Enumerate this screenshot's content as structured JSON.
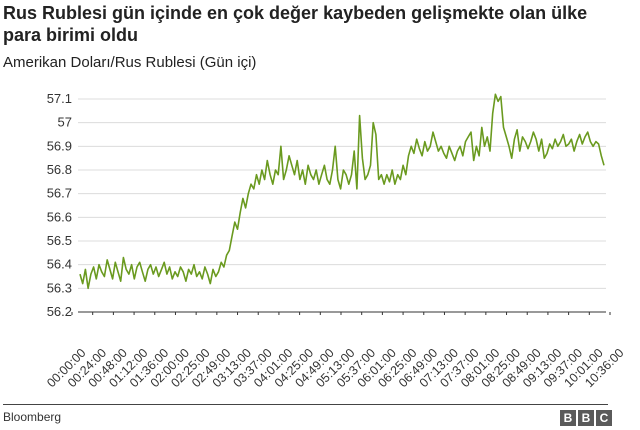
{
  "header": {
    "title": "Rus Rublesi gün içinde en çok değer kaybeden gelişmekte olan ülke para birimi oldu",
    "subtitle": "Amerikan Doları/Rus Rublesi (Gün içi)"
  },
  "footer": {
    "source": "Bloomberg",
    "logo_letters": [
      "B",
      "B",
      "C"
    ]
  },
  "colors": {
    "line": "#6a9a1f",
    "grid": "#dcdcdc",
    "axis": "#333333"
  },
  "chart_data": {
    "type": "line",
    "title": "Rus Rublesi gün içinde en çok değer kaybeden gelişmekte olan ülke para birimi oldu",
    "subtitle": "Amerikan Doları/Rus Rublesi (Gün içi)",
    "xlabel": "",
    "ylabel": "",
    "ylim": [
      56.2,
      57.1
    ],
    "yticks": [
      "57.1",
      "57",
      "56.9",
      "56.8",
      "56.7",
      "56.6",
      "56.5",
      "56.4",
      "56.3",
      "56.2"
    ],
    "grid": true,
    "xticks": [
      "00:00:00",
      "00:24:00",
      "00:48:00",
      "01:12:00",
      "01:36:00",
      "02:00:00",
      "02:25:00",
      "02:49:00",
      "03:13:00",
      "03:37:00",
      "04:01:00",
      "04:25:00",
      "04:49:00",
      "05:13:00",
      "05:37:00",
      "06:01:00",
      "06:25:00",
      "06:49:00",
      "07:13:00",
      "07:37:00",
      "08:01:00",
      "08:25:00",
      "08:49:00",
      "09:13:00",
      "09:37:00",
      "10:01:00",
      "10:36:00"
    ],
    "series": [
      {
        "values": [
          56.36,
          56.32,
          56.38,
          56.3,
          56.36,
          56.39,
          56.34,
          56.4,
          56.37,
          56.35,
          56.42,
          56.38,
          56.34,
          56.41,
          56.37,
          56.33,
          56.43,
          56.38,
          56.36,
          56.4,
          56.34,
          56.39,
          56.41,
          56.37,
          56.33,
          56.38,
          56.4,
          56.36,
          56.39,
          56.35,
          56.38,
          56.41,
          56.36,
          56.39,
          56.34,
          56.37,
          56.35,
          56.39,
          56.37,
          56.33,
          56.38,
          56.36,
          56.4,
          56.35,
          56.37,
          56.34,
          56.39,
          56.36,
          56.32,
          56.38,
          56.35,
          56.37,
          56.41,
          56.39,
          56.44,
          56.46,
          56.52,
          56.58,
          56.55,
          56.62,
          56.68,
          56.64,
          56.7,
          56.74,
          56.72,
          56.78,
          56.74,
          56.8,
          56.76,
          56.84,
          56.78,
          56.74,
          56.8,
          56.78,
          56.9,
          56.76,
          56.8,
          56.86,
          56.82,
          56.78,
          56.84,
          56.76,
          56.8,
          56.74,
          56.82,
          56.78,
          56.76,
          56.8,
          56.74,
          56.78,
          56.82,
          56.76,
          56.74,
          56.8,
          56.9,
          56.76,
          56.72,
          56.8,
          56.78,
          56.74,
          56.78,
          56.88,
          56.72,
          57.03,
          56.85,
          56.76,
          56.78,
          56.82,
          57.0,
          56.95,
          56.76,
          56.78,
          56.74,
          56.78,
          56.75,
          56.8,
          56.74,
          56.78,
          56.76,
          56.82,
          56.78,
          56.86,
          56.9,
          56.87,
          56.93,
          56.89,
          56.86,
          56.92,
          56.88,
          56.9,
          56.96,
          56.92,
          56.88,
          56.9,
          56.87,
          56.85,
          56.9,
          56.87,
          56.84,
          56.88,
          56.9,
          56.86,
          56.92,
          56.94,
          56.96,
          56.84,
          56.9,
          56.86,
          56.98,
          56.9,
          56.94,
          56.88,
          57.04,
          57.12,
          57.09,
          57.11,
          56.98,
          56.94,
          56.9,
          56.85,
          56.93,
          56.97,
          56.88,
          56.94,
          56.92,
          56.89,
          56.92,
          56.96,
          56.93,
          56.88,
          56.93,
          56.85,
          56.87,
          56.91,
          56.89,
          56.93,
          56.9,
          56.92,
          56.95,
          56.9,
          56.91,
          56.93,
          56.88,
          56.92,
          56.95,
          56.91,
          56.94,
          56.96,
          56.92,
          56.9,
          56.92,
          56.91,
          56.86,
          56.82
        ]
      }
    ]
  }
}
